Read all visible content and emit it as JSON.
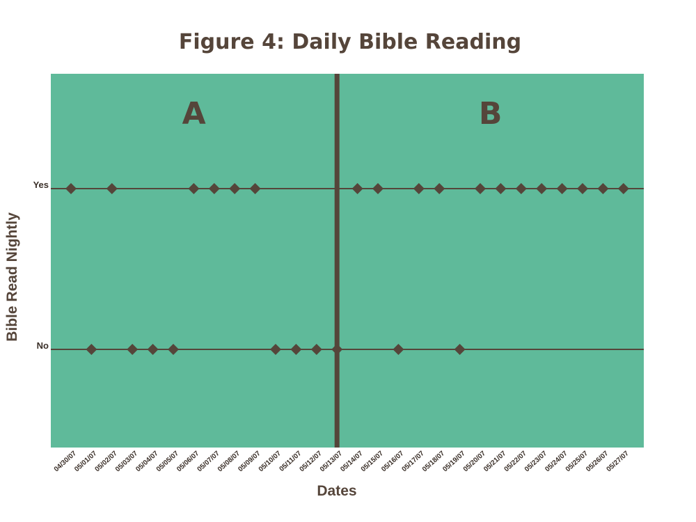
{
  "chart_data": {
    "type": "scatter",
    "title": "Figure 4: Daily Bible Reading",
    "xlabel": "Dates",
    "ylabel": "Bible Read Nightly",
    "y_categories": [
      "No",
      "Yes"
    ],
    "x": [
      "04/30/07",
      "05/01/07",
      "05/02/07",
      "05/03/07",
      "05/04/07",
      "05/05/07",
      "05/06/07",
      "05/07/07",
      "05/08/07",
      "05/09/07",
      "05/10/07",
      "05/11/07",
      "05/12/07",
      "05/13/07",
      "05/14/07",
      "05/15/07",
      "05/16/07",
      "05/17/07",
      "05/18/07",
      "05/19/07",
      "05/20/07",
      "05/21/07",
      "05/22/07",
      "05/23/07",
      "05/24/07",
      "05/25/07",
      "05/26/07",
      "05/27/07"
    ],
    "values": [
      "Yes",
      "No",
      "Yes",
      "No",
      "No",
      "No",
      "Yes",
      "Yes",
      "Yes",
      "Yes",
      "No",
      "No",
      "No",
      "No",
      "Yes",
      "Yes",
      "No",
      "Yes",
      "Yes",
      "No",
      "Yes",
      "Yes",
      "Yes",
      "Yes",
      "Yes",
      "Yes",
      "Yes",
      "Yes"
    ],
    "phases": [
      {
        "label": "A",
        "start": "04/30/07",
        "end": "05/13/07"
      },
      {
        "label": "B",
        "start": "05/14/07",
        "end": "05/27/07"
      }
    ],
    "phase_change_after": "05/13/07",
    "grid": false,
    "colors": {
      "plot_background": "#5fba9a",
      "marker": "#55453a",
      "reference_lines": "#55453a",
      "phase_line": "#55453a",
      "text": "#55453a"
    }
  }
}
